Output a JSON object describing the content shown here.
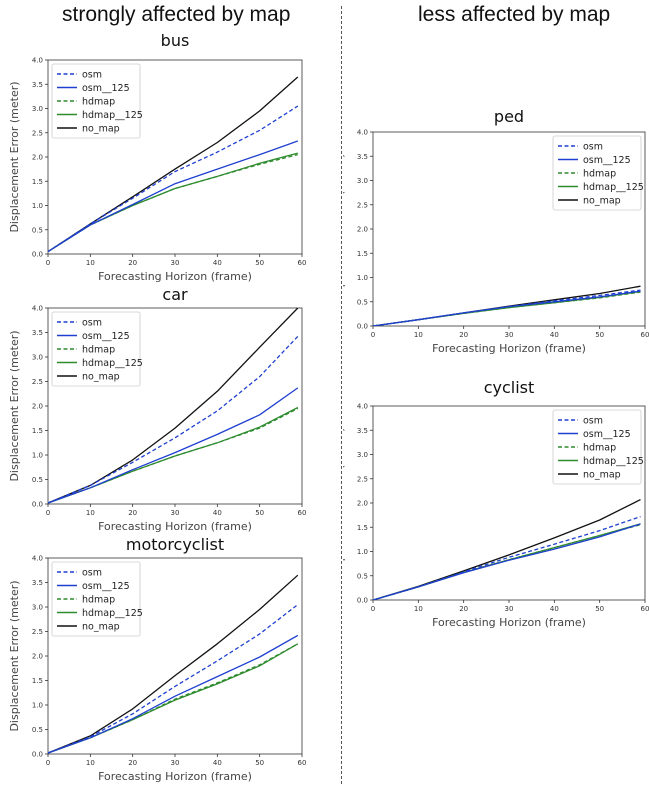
{
  "headings": {
    "left": "strongly affected by map",
    "right": "less affected by map"
  },
  "colors": {
    "osm": "#1f3fd0",
    "osm_125": "#1f3fd0",
    "hdmap": "#2e8b2e",
    "hdmap_125": "#2e8b2e",
    "no_map": "#111111"
  },
  "chart_data": [
    {
      "type": "line",
      "title": "bus",
      "xlabel": "Forecasting Horizon (frame)",
      "ylabel": "Displacement Error (meter)",
      "xlim": [
        0,
        60
      ],
      "ylim": [
        0,
        4.0
      ],
      "xticks": [
        "0",
        "10",
        "20",
        "30",
        "40",
        "50",
        "60"
      ],
      "yticks": [
        "0.0",
        "0.5",
        "1.0",
        "1.5",
        "2.0",
        "2.5",
        "3.0",
        "3.5",
        "4.0"
      ],
      "legend_position": "top-left",
      "x": [
        0,
        10,
        20,
        30,
        40,
        50,
        59
      ],
      "series": [
        {
          "name": "osm",
          "style": "dashed",
          "values": [
            0.05,
            0.62,
            1.15,
            1.7,
            2.1,
            2.55,
            3.05
          ]
        },
        {
          "name": "osm__125",
          "style": "solid",
          "values": [
            0.05,
            0.6,
            1.02,
            1.45,
            1.75,
            2.05,
            2.33
          ]
        },
        {
          "name": "hdmap",
          "style": "dashed",
          "values": [
            0.05,
            0.6,
            1.0,
            1.35,
            1.6,
            1.85,
            2.05
          ]
        },
        {
          "name": "hdmap__125",
          "style": "solid",
          "values": [
            0.05,
            0.6,
            1.0,
            1.35,
            1.6,
            1.87,
            2.08
          ]
        },
        {
          "name": "no_map",
          "style": "solid",
          "values": [
            0.05,
            0.62,
            1.18,
            1.75,
            2.3,
            2.95,
            3.65
          ]
        }
      ]
    },
    {
      "type": "line",
      "title": "car",
      "xlabel": "Forecasting Horizon (frame)",
      "ylabel": "Displacement Error (meter)",
      "xlim": [
        0,
        60
      ],
      "ylim": [
        0,
        4.0
      ],
      "xticks": [
        "0",
        "10",
        "20",
        "30",
        "40",
        "50",
        "60"
      ],
      "yticks": [
        "0.0",
        "0.5",
        "1.0",
        "1.5",
        "2.0",
        "2.5",
        "3.0",
        "3.5",
        "4.0"
      ],
      "legend_position": "top-left",
      "x": [
        0,
        10,
        20,
        30,
        40,
        50,
        59
      ],
      "series": [
        {
          "name": "osm",
          "style": "dashed",
          "values": [
            0.02,
            0.38,
            0.85,
            1.35,
            1.9,
            2.6,
            3.42
          ]
        },
        {
          "name": "osm__125",
          "style": "solid",
          "values": [
            0.02,
            0.33,
            0.7,
            1.05,
            1.42,
            1.82,
            2.37
          ]
        },
        {
          "name": "hdmap",
          "style": "dashed",
          "values": [
            0.02,
            0.33,
            0.67,
            0.98,
            1.25,
            1.55,
            1.95
          ]
        },
        {
          "name": "hdmap__125",
          "style": "solid",
          "values": [
            0.02,
            0.33,
            0.67,
            0.98,
            1.25,
            1.57,
            1.97
          ]
        },
        {
          "name": "no_map",
          "style": "solid",
          "values": [
            0.02,
            0.38,
            0.9,
            1.55,
            2.3,
            3.2,
            4.0
          ]
        }
      ]
    },
    {
      "type": "line",
      "title": "motorcyclist",
      "xlabel": "Forecasting Horizon (frame)",
      "ylabel": "Displacement Error (meter)",
      "xlim": [
        0,
        60
      ],
      "ylim": [
        0,
        4.0
      ],
      "xticks": [
        "0",
        "10",
        "20",
        "30",
        "40",
        "50",
        "60"
      ],
      "yticks": [
        "0.0",
        "0.5",
        "1.0",
        "1.5",
        "2.0",
        "2.5",
        "3.0",
        "3.5",
        "4.0"
      ],
      "legend_position": "top-left",
      "x": [
        0,
        10,
        20,
        30,
        40,
        50,
        59
      ],
      "series": [
        {
          "name": "osm",
          "style": "dashed",
          "values": [
            0.02,
            0.35,
            0.82,
            1.38,
            1.9,
            2.45,
            3.05
          ]
        },
        {
          "name": "osm__125",
          "style": "solid",
          "values": [
            0.02,
            0.33,
            0.72,
            1.18,
            1.58,
            1.98,
            2.42
          ]
        },
        {
          "name": "hdmap",
          "style": "dashed",
          "values": [
            0.02,
            0.33,
            0.7,
            1.12,
            1.45,
            1.82,
            2.25
          ]
        },
        {
          "name": "hdmap__125",
          "style": "solid",
          "values": [
            0.02,
            0.33,
            0.7,
            1.1,
            1.43,
            1.8,
            2.25
          ]
        },
        {
          "name": "no_map",
          "style": "solid",
          "values": [
            0.02,
            0.37,
            0.92,
            1.6,
            2.25,
            2.95,
            3.65
          ]
        }
      ]
    },
    {
      "type": "line",
      "title": "ped",
      "xlabel": "Forecasting Horizon (frame)",
      "ylabel": "Displacement Error (meter)",
      "xlim": [
        0,
        60
      ],
      "ylim": [
        0,
        4.0
      ],
      "xticks": [
        "0",
        "10",
        "20",
        "30",
        "40",
        "50",
        "60"
      ],
      "yticks": [
        "0.0",
        "0.5",
        "1.0",
        "1.5",
        "2.0",
        "2.5",
        "3.0",
        "3.5",
        "4.0"
      ],
      "legend_position": "top-right",
      "x": [
        0,
        10,
        20,
        30,
        40,
        50,
        59
      ],
      "series": [
        {
          "name": "osm",
          "style": "dashed",
          "values": [
            0.0,
            0.13,
            0.27,
            0.4,
            0.52,
            0.63,
            0.74
          ]
        },
        {
          "name": "osm__125",
          "style": "solid",
          "values": [
            0.0,
            0.13,
            0.27,
            0.4,
            0.5,
            0.6,
            0.72
          ]
        },
        {
          "name": "hdmap",
          "style": "dashed",
          "values": [
            0.0,
            0.13,
            0.26,
            0.38,
            0.48,
            0.58,
            0.7
          ]
        },
        {
          "name": "hdmap__125",
          "style": "solid",
          "values": [
            0.0,
            0.13,
            0.26,
            0.38,
            0.48,
            0.59,
            0.71
          ]
        },
        {
          "name": "no_map",
          "style": "solid",
          "values": [
            0.0,
            0.13,
            0.27,
            0.41,
            0.54,
            0.67,
            0.82
          ]
        }
      ]
    },
    {
      "type": "line",
      "title": "cyclist",
      "xlabel": "Forecasting Horizon (frame)",
      "ylabel": "Displacement Error (meter)",
      "xlim": [
        0,
        60
      ],
      "ylim": [
        0,
        4.0
      ],
      "xticks": [
        "0",
        "10",
        "20",
        "30",
        "40",
        "50",
        "60"
      ],
      "yticks": [
        "0.0",
        "0.5",
        "1.0",
        "1.5",
        "2.0",
        "2.5",
        "3.0",
        "3.5",
        "4.0"
      ],
      "legend_position": "top-right",
      "x": [
        0,
        10,
        20,
        30,
        40,
        50,
        59
      ],
      "series": [
        {
          "name": "osm",
          "style": "dashed",
          "values": [
            0.0,
            0.27,
            0.58,
            0.88,
            1.15,
            1.43,
            1.72
          ]
        },
        {
          "name": "osm__125",
          "style": "solid",
          "values": [
            0.0,
            0.27,
            0.56,
            0.82,
            1.05,
            1.3,
            1.57
          ]
        },
        {
          "name": "hdmap",
          "style": "dashed",
          "values": [
            0.0,
            0.27,
            0.57,
            0.83,
            1.08,
            1.33,
            1.55
          ]
        },
        {
          "name": "hdmap__125",
          "style": "solid",
          "values": [
            0.0,
            0.27,
            0.57,
            0.83,
            1.08,
            1.33,
            1.57
          ]
        },
        {
          "name": "no_map",
          "style": "solid",
          "values": [
            0.0,
            0.28,
            0.6,
            0.93,
            1.28,
            1.65,
            2.07
          ]
        }
      ]
    }
  ]
}
